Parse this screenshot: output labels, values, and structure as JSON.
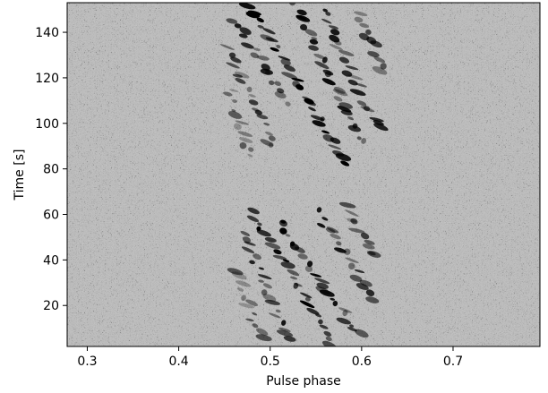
{
  "chart_data": {
    "type": "heatmap",
    "title": "",
    "xlabel": "Pulse phase",
    "ylabel": "Time [s]",
    "xlim": [
      0.278,
      0.795
    ],
    "ylim": [
      2,
      153
    ],
    "xticks": [
      0.3,
      0.4,
      0.5,
      0.6,
      0.7
    ],
    "xtick_labels": [
      "0.3",
      "0.4",
      "0.5",
      "0.6",
      "0.7"
    ],
    "yticks": [
      20,
      40,
      60,
      80,
      100,
      120,
      140
    ],
    "ytick_labels": [
      "20",
      "40",
      "60",
      "80",
      "100",
      "120",
      "140"
    ],
    "colormap": "gray_r",
    "background": "noise, mid-grey",
    "colors": {
      "strong": "#000000",
      "background": "#bdbdbd"
    },
    "on_pulse_window": [
      0.46,
      0.62
    ],
    "nulling_interval_s": [
      71,
      80
    ],
    "drifting_subpulses": [
      {
        "t_start": 153,
        "t_end": 81,
        "phase_start": 0.475,
        "phase_end": 0.585,
        "intensity": 0.95
      },
      {
        "t_start": 153,
        "t_end": 90,
        "phase_start": 0.525,
        "phase_end": 0.605,
        "intensity": 0.8
      },
      {
        "t_start": 151,
        "t_end": 96,
        "phase_start": 0.555,
        "phase_end": 0.62,
        "intensity": 0.75
      },
      {
        "t_start": 149,
        "t_end": 122,
        "phase_start": 0.595,
        "phase_end": 0.625,
        "intensity": 0.6
      },
      {
        "t_start": 146,
        "t_end": 108,
        "phase_start": 0.46,
        "phase_end": 0.52,
        "intensity": 0.75
      },
      {
        "t_start": 133,
        "t_end": 88,
        "phase_start": 0.455,
        "phase_end": 0.505,
        "intensity": 0.65
      },
      {
        "t_start": 116,
        "t_end": 84,
        "phase_start": 0.455,
        "phase_end": 0.48,
        "intensity": 0.45
      },
      {
        "t_start": 62,
        "t_end": 2,
        "phase_start": 0.48,
        "phase_end": 0.57,
        "intensity": 0.9
      },
      {
        "t_start": 58,
        "t_end": 5,
        "phase_start": 0.51,
        "phase_end": 0.6,
        "intensity": 0.85
      },
      {
        "t_start": 62,
        "t_end": 22,
        "phase_start": 0.55,
        "phase_end": 0.615,
        "intensity": 0.75
      },
      {
        "t_start": 64,
        "t_end": 40,
        "phase_start": 0.58,
        "phase_end": 0.62,
        "intensity": 0.6
      },
      {
        "t_start": 52,
        "t_end": 4,
        "phase_start": 0.47,
        "phase_end": 0.52,
        "intensity": 0.75
      },
      {
        "t_start": 36,
        "t_end": 4,
        "phase_start": 0.465,
        "phase_end": 0.49,
        "intensity": 0.5
      }
    ]
  }
}
